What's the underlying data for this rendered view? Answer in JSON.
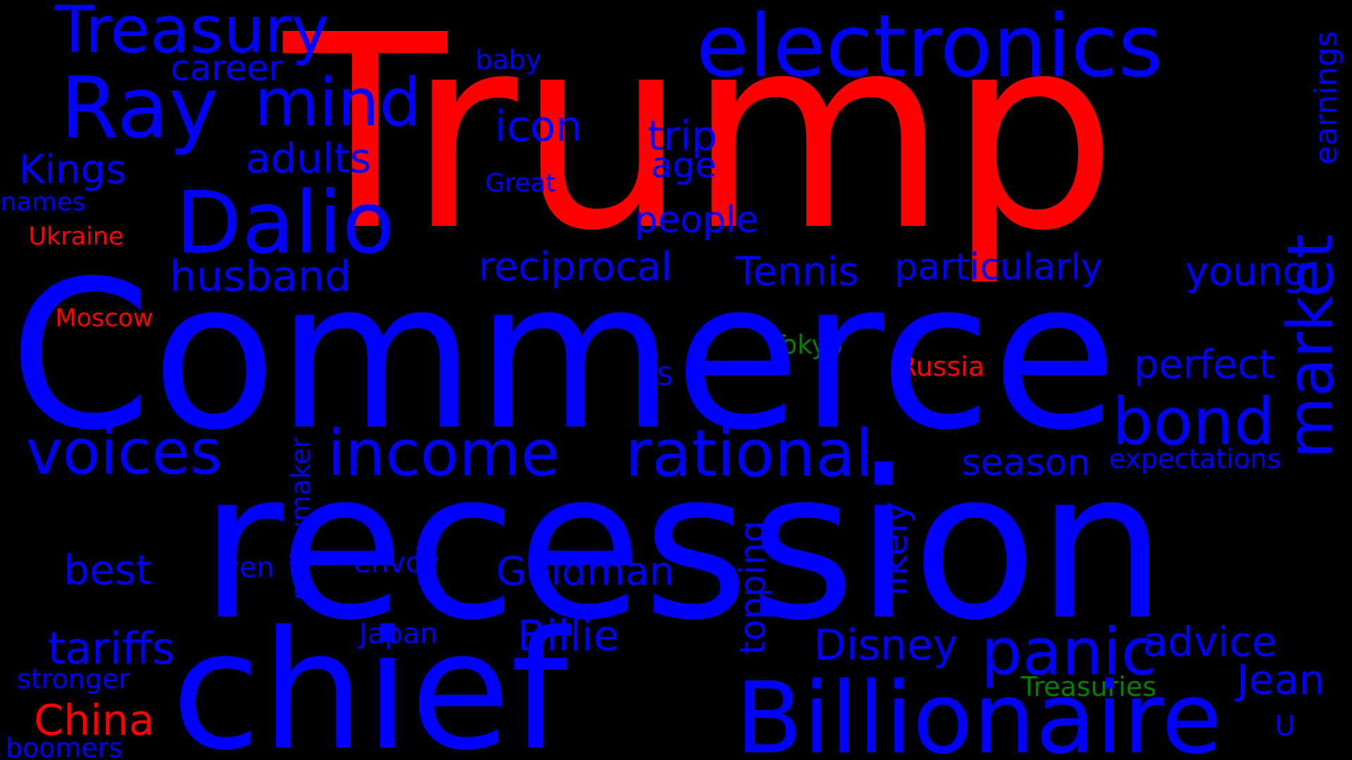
{
  "colors": {
    "background": "#000000",
    "blue": "#0000ff",
    "red": "#ff0000",
    "green": "#008000"
  },
  "words": {
    "trump": "Trump",
    "commerce": "Commerce",
    "recession": "recession",
    "chief": "chief",
    "billionaire": "Billionaire",
    "electronics": "electronics",
    "dalio": "Dalio",
    "ray": "Ray",
    "treasury": "Treasury",
    "mind": "mind",
    "income": "income",
    "rational": "rational",
    "voices": "voices",
    "bond": "bond",
    "market": "market",
    "panic": "panic",
    "career": "career",
    "icon": "icon",
    "baby": "baby",
    "adults": "adults",
    "kings": "Kings",
    "names": "names",
    "great": "Great",
    "trip": "trip",
    "age": "age",
    "earnings": "earnings",
    "people": "people",
    "ukraine": "Ukraine",
    "husband": "husband",
    "reciprocal": "reciprocal",
    "tennis": "Tennis",
    "particularly": "particularly",
    "young": "young",
    "moscow": "Moscow",
    "tokyo": "Tokyo",
    "russia": "Russia",
    "perfect": "perfect",
    "s": "S",
    "season": "season",
    "expectations": "expectations",
    "policymaker": "policymaker",
    "likely": "likely",
    "topping": "topping",
    "best": "best",
    "yen": "yen",
    "envoy": "envoy",
    "goldman": "Goldman",
    "billie": "Billie",
    "japan": "Japan",
    "disney": "Disney",
    "advice": "advice",
    "tariffs": "tariffs",
    "jean": "Jean",
    "stronger": "stronger",
    "treasuries": "Treasuries",
    "china": "China",
    "boomers": "boomers",
    "u": "U"
  }
}
